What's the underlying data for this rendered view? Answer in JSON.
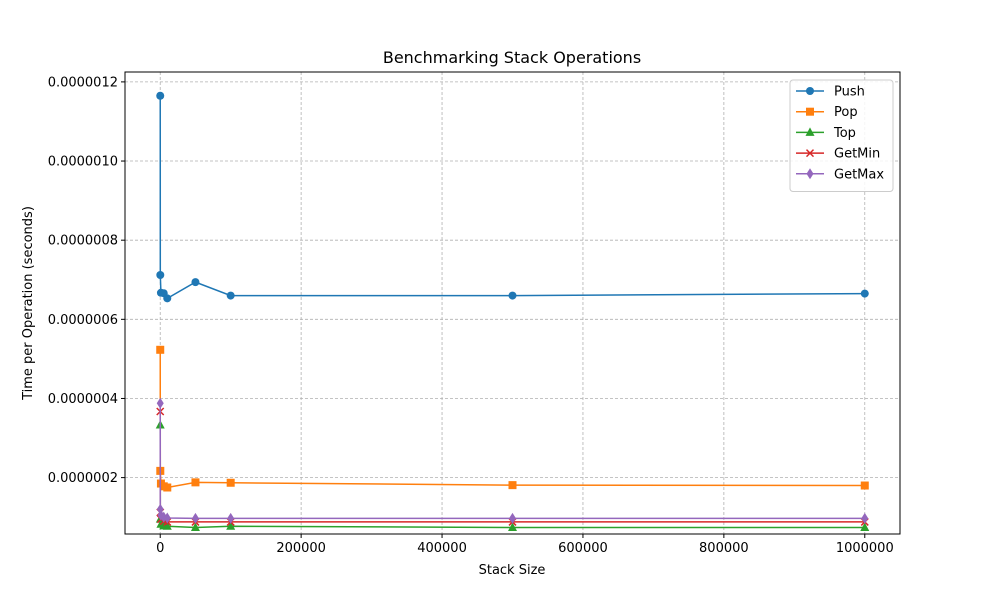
{
  "chart_data": {
    "type": "line",
    "title": "Benchmarking Stack Operations",
    "xlabel": "Stack Size",
    "ylabel": "Time per Operation (seconds)",
    "xlim": [
      -50000,
      1050000
    ],
    "ylim": [
      5.75e-08,
      1.225e-06
    ],
    "xticks": [
      0,
      200000,
      400000,
      600000,
      800000,
      1000000
    ],
    "xtick_labels": [
      "0",
      "200000",
      "400000",
      "600000",
      "800000",
      "1000000"
    ],
    "yticks": [
      2e-07,
      4e-07,
      6e-07,
      8e-07,
      1e-06,
      1.2e-06
    ],
    "ytick_labels": [
      "0.0000002",
      "0.0000004",
      "0.0000006",
      "0.0000008",
      "0.0000010",
      "0.0000012"
    ],
    "grid": true,
    "legend_position": "top-right",
    "x": [
      10,
      100,
      1000,
      5000,
      10000,
      50000,
      100000,
      500000,
      1000000
    ],
    "series": [
      {
        "name": "Push",
        "marker": "circle",
        "color": "#1f77b4",
        "values": [
          1.165e-06,
          7.12e-07,
          6.67e-07,
          6.66e-07,
          6.53e-07,
          6.94e-07,
          6.6e-07,
          6.6e-07,
          6.65e-07
        ]
      },
      {
        "name": "Pop",
        "marker": "square",
        "color": "#ff7f0e",
        "values": [
          5.23e-07,
          2.17e-07,
          1.85e-07,
          1.78e-07,
          1.75e-07,
          1.88e-07,
          1.87e-07,
          1.81e-07,
          1.8e-07
        ]
      },
      {
        "name": "Top",
        "marker": "triangle",
        "color": "#2ca02c",
        "values": [
          3.33e-07,
          9.5e-08,
          8.2e-08,
          7.8e-08,
          7.7e-08,
          7.4e-08,
          7.7e-08,
          7.4e-08,
          7.4e-08
        ]
      },
      {
        "name": "GetMin",
        "marker": "x",
        "color": "#d62728",
        "values": [
          3.67e-07,
          1.12e-07,
          9.5e-08,
          9e-08,
          8.8e-08,
          8.8e-08,
          8.8e-08,
          8.8e-08,
          8.8e-08
        ]
      },
      {
        "name": "GetMax",
        "marker": "diamond",
        "color": "#9467bd",
        "values": [
          3.88e-07,
          1.2e-07,
          1.05e-07,
          1e-07,
          9.8e-08,
          9.7e-08,
          9.7e-08,
          9.7e-08,
          9.7e-08
        ]
      }
    ]
  }
}
